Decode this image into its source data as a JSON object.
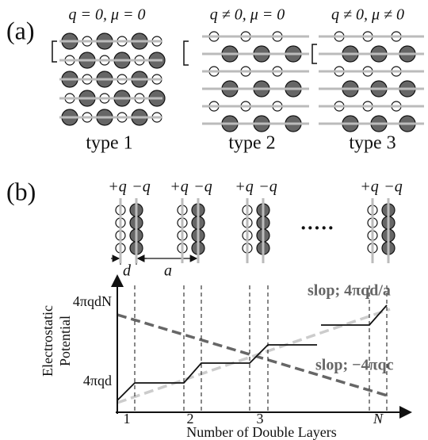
{
  "panel_a": {
    "label": "(a)",
    "lattices": [
      {
        "title": "q = 0, μ = 0",
        "caption": "type 1"
      },
      {
        "title": "q ≠ 0, μ = 0",
        "caption": "type 2"
      },
      {
        "title": "q ≠ 0, μ ≠ 0",
        "caption": "type 3"
      }
    ]
  },
  "panel_b": {
    "label": "(b)",
    "charge_labels": [
      [
        "+q",
        "−q"
      ],
      [
        "+q",
        "−q"
      ],
      [
        "+q",
        "−q"
      ],
      [
        "+q",
        "−q"
      ]
    ],
    "ellipsis": "·····",
    "spacing_labels": [
      "d",
      "a"
    ],
    "plot": {
      "y_label": [
        "Electrostatic",
        "Potential"
      ],
      "y_tick_labels": [
        "4πqdN",
        "4πqd"
      ],
      "x_tick_labels": [
        "1",
        "2",
        "3",
        "N"
      ],
      "x_label": "Number of Double Layers",
      "slope_labels": [
        "slop; 4πqd/a",
        "slop; −4πqc"
      ]
    }
  }
}
